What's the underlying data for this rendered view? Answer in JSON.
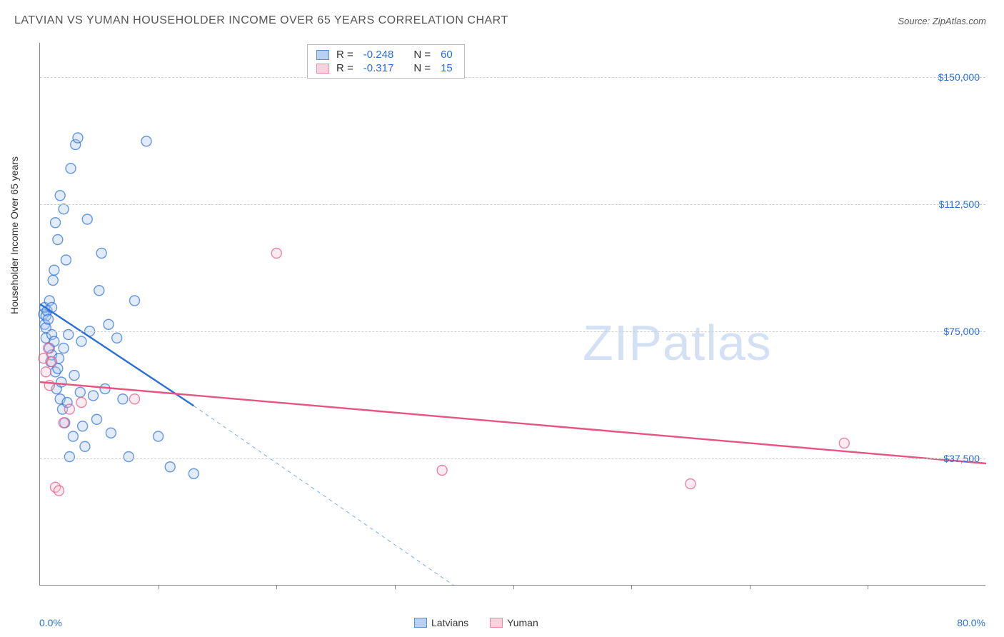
{
  "title": "LATVIAN VS YUMAN HOUSEHOLDER INCOME OVER 65 YEARS CORRELATION CHART",
  "source_prefix": "Source: ",
  "source_name": "ZipAtlas.com",
  "ylabel": "Householder Income Over 65 years",
  "watermark_a": "ZIP",
  "watermark_b": "atlas",
  "chart": {
    "xlim": [
      0,
      80
    ],
    "ylim": [
      0,
      160000
    ],
    "x_axis_min_label": "0.0%",
    "x_axis_max_label": "80.0%",
    "y_gridlines": [
      {
        "value": 37500,
        "label": "$37,500"
      },
      {
        "value": 75000,
        "label": "$75,000"
      },
      {
        "value": 112500,
        "label": "$112,500"
      },
      {
        "value": 150000,
        "label": "$150,000"
      }
    ],
    "x_ticks": [
      10,
      20,
      30,
      40,
      50,
      60,
      70
    ],
    "marker_radius": 7,
    "marker_fill_opacity": 0.35,
    "marker_stroke_width": 1.4,
    "trend_line_width": 2.4,
    "grid_color": "#d0d0d0",
    "axis_color": "#888888",
    "tick_label_color": "#2a6fd6",
    "background_color": "#ffffff"
  },
  "series": [
    {
      "key": "latvians",
      "label": "Latvians",
      "color": "#2a6fd6",
      "fill": "#a8c6ef",
      "swatch_fill": "#b8d1f2",
      "swatch_border": "#5b8fd6",
      "R": "-0.248",
      "N": "60",
      "trend": {
        "x1": 0,
        "y1": 83000,
        "x2": 13,
        "y2": 53000
      },
      "trend_extrap": {
        "x1": 13,
        "y1": 53000,
        "x2": 35,
        "y2": 0
      },
      "points": [
        [
          0.3,
          80000
        ],
        [
          0.4,
          82000
        ],
        [
          0.4,
          77000
        ],
        [
          0.5,
          76000
        ],
        [
          0.5,
          79500
        ],
        [
          0.5,
          73000
        ],
        [
          0.6,
          81000
        ],
        [
          0.7,
          78500
        ],
        [
          0.8,
          84000
        ],
        [
          0.8,
          70000
        ],
        [
          0.9,
          66000
        ],
        [
          1.0,
          82000
        ],
        [
          1.0,
          74000
        ],
        [
          1.0,
          68000
        ],
        [
          1.1,
          90000
        ],
        [
          1.2,
          93000
        ],
        [
          1.2,
          72000
        ],
        [
          1.3,
          107000
        ],
        [
          1.3,
          63000
        ],
        [
          1.4,
          58000
        ],
        [
          1.5,
          102000
        ],
        [
          1.5,
          64000
        ],
        [
          1.6,
          67000
        ],
        [
          1.7,
          115000
        ],
        [
          1.7,
          55000
        ],
        [
          1.8,
          60000
        ],
        [
          1.9,
          52000
        ],
        [
          2.0,
          111000
        ],
        [
          2.0,
          70000
        ],
        [
          2.1,
          48000
        ],
        [
          2.2,
          96000
        ],
        [
          2.3,
          54000
        ],
        [
          2.4,
          74000
        ],
        [
          2.5,
          38000
        ],
        [
          2.6,
          123000
        ],
        [
          2.8,
          44000
        ],
        [
          2.9,
          62000
        ],
        [
          3.0,
          130000
        ],
        [
          3.2,
          132000
        ],
        [
          3.4,
          57000
        ],
        [
          3.5,
          72000
        ],
        [
          3.6,
          47000
        ],
        [
          3.8,
          41000
        ],
        [
          4.0,
          108000
        ],
        [
          4.2,
          75000
        ],
        [
          4.5,
          56000
        ],
        [
          4.8,
          49000
        ],
        [
          5.0,
          87000
        ],
        [
          5.2,
          98000
        ],
        [
          5.5,
          58000
        ],
        [
          5.8,
          77000
        ],
        [
          6.0,
          45000
        ],
        [
          6.5,
          73000
        ],
        [
          7.0,
          55000
        ],
        [
          7.5,
          38000
        ],
        [
          8.0,
          84000
        ],
        [
          9.0,
          131000
        ],
        [
          10.0,
          44000
        ],
        [
          11.0,
          35000
        ],
        [
          13.0,
          33000
        ]
      ]
    },
    {
      "key": "yuman",
      "label": "Yuman",
      "color": "#e75480",
      "fill": "#f7c6d4",
      "swatch_fill": "#f9d2de",
      "swatch_border": "#e88ba8",
      "R": "-0.317",
      "N": "15",
      "trend": {
        "x1": 0,
        "y1": 60000,
        "x2": 80,
        "y2": 36000
      },
      "points": [
        [
          0.3,
          67000
        ],
        [
          0.5,
          63000
        ],
        [
          0.7,
          70000
        ],
        [
          0.8,
          59000
        ],
        [
          1.0,
          66000
        ],
        [
          1.3,
          29000
        ],
        [
          1.6,
          28000
        ],
        [
          2.0,
          48000
        ],
        [
          2.5,
          52000
        ],
        [
          3.5,
          54000
        ],
        [
          8.0,
          55000
        ],
        [
          20.0,
          98000
        ],
        [
          34.0,
          34000
        ],
        [
          55.0,
          30000
        ],
        [
          68.0,
          42000
        ]
      ]
    }
  ],
  "legend": {
    "r_label": "R =",
    "n_label": "N ="
  }
}
